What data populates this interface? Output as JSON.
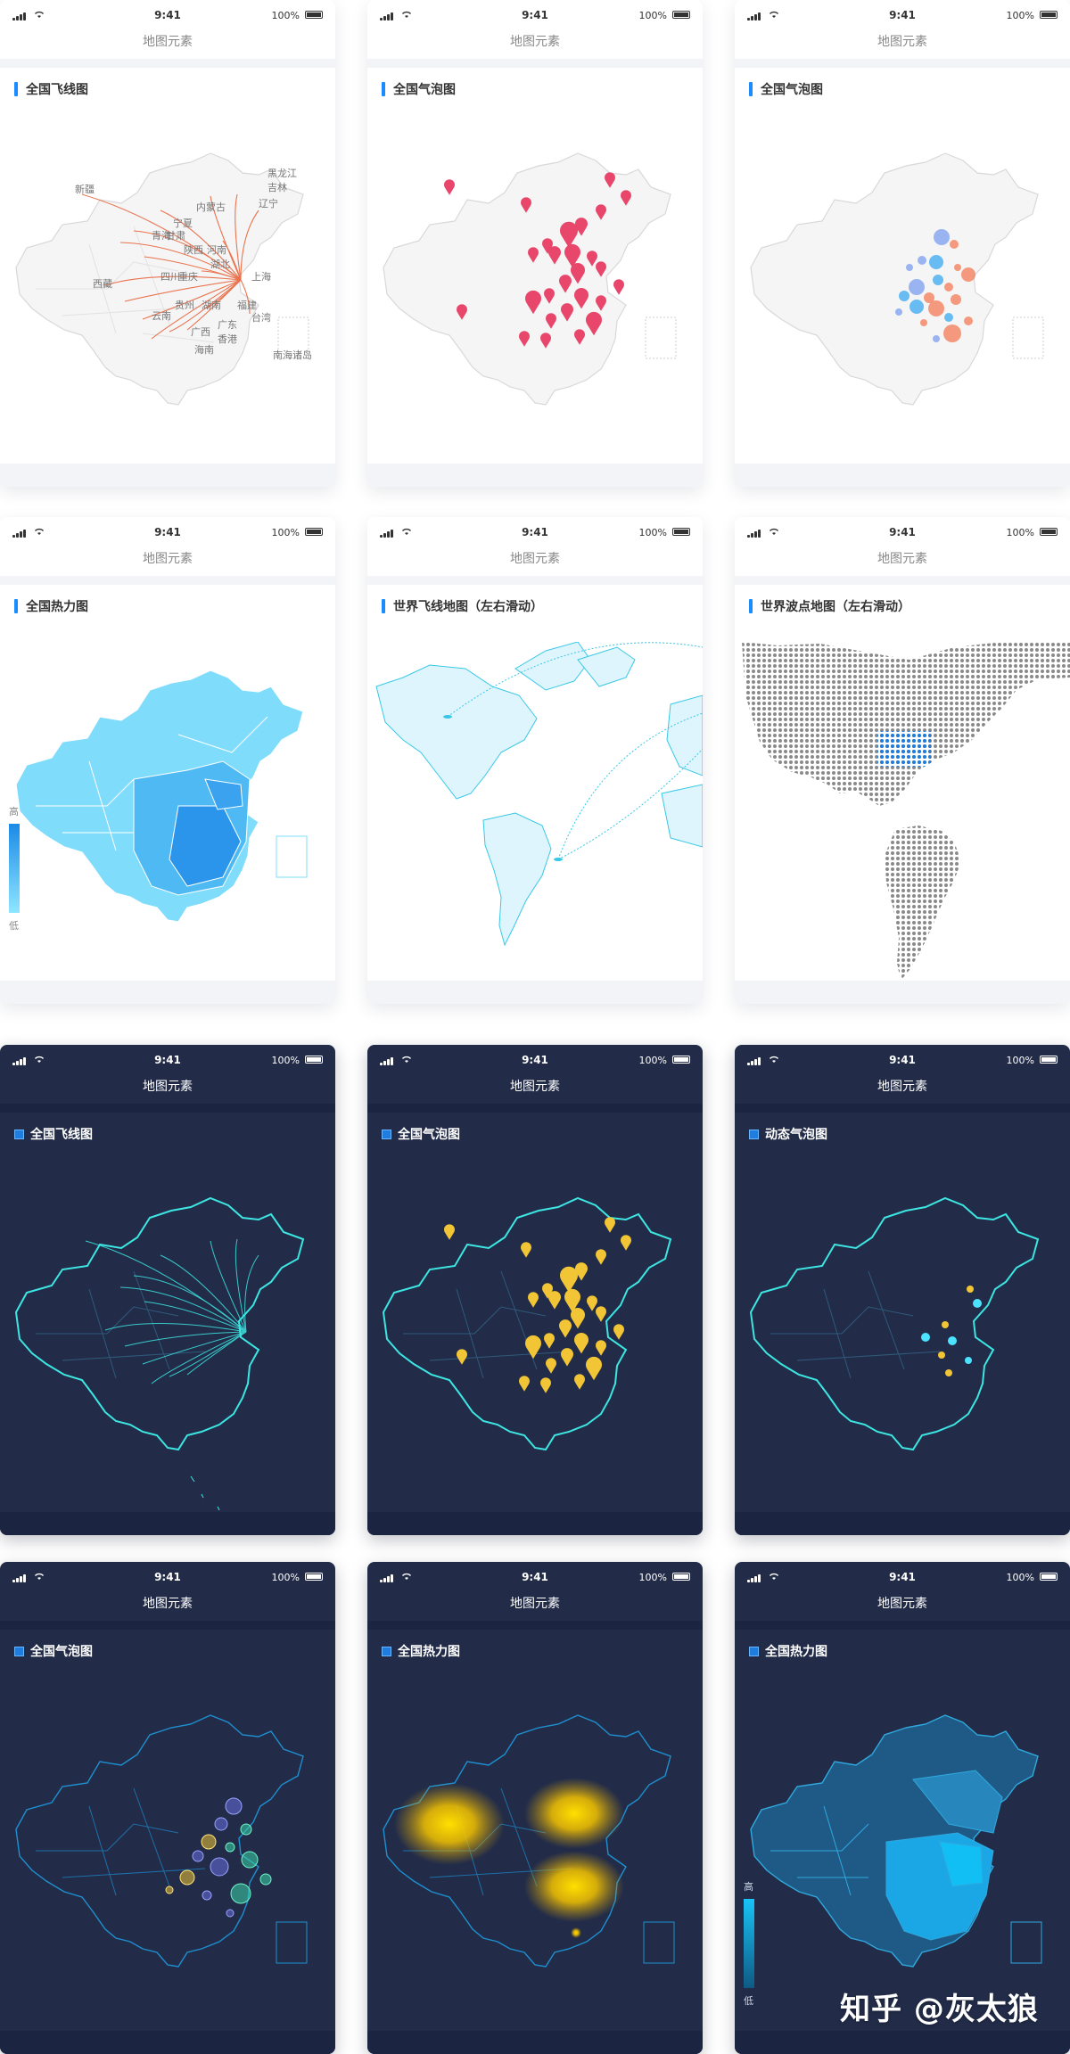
{
  "status_bar": {
    "time": "9:41",
    "battery": "100%"
  },
  "nav_title": "地图元素",
  "cards": [
    {
      "title": "全国飞线图",
      "theme": "light",
      "map": "flight-lines",
      "labels": [
        "黑龙江",
        "吉林",
        "辽宁",
        "新疆",
        "内蒙古",
        "宁夏",
        "青海",
        "甘肃",
        "陕西",
        "西藏",
        "四川",
        "重庆",
        "湖北",
        "上海",
        "云南",
        "贵州",
        "湖南",
        "台湾",
        "广西",
        "广东",
        "香港",
        "海南",
        "南海诸岛",
        "河南",
        "福建"
      ]
    },
    {
      "title": "全国气泡图",
      "theme": "light",
      "map": "pins",
      "pin_color": "#e8466a"
    },
    {
      "title": "全国气泡图",
      "theme": "light",
      "map": "bubbles",
      "bubble_colors": [
        "#3aa8f0",
        "#f47a55",
        "#7b9ef0"
      ]
    },
    {
      "title": "全国热力图",
      "theme": "light",
      "map": "choropleth",
      "legend": {
        "high": "高",
        "low": "低"
      },
      "scale_colors": [
        "#1a8ae6",
        "#8ee6ff"
      ]
    },
    {
      "title": "世界飞线地图（左右滑动）",
      "theme": "light",
      "map": "world-lines"
    },
    {
      "title": "世界波点地图（左右滑动）",
      "theme": "light",
      "map": "world-dots"
    },
    {
      "title": "全国飞线图",
      "theme": "dark",
      "map": "flight-lines-dark"
    },
    {
      "title": "全国气泡图",
      "theme": "dark",
      "map": "pins-dark",
      "pin_color": "#f1c535"
    },
    {
      "title": "动态气泡图",
      "theme": "dark",
      "map": "dynamic-bubbles"
    },
    {
      "title": "全国气泡图",
      "theme": "dark",
      "map": "bubbles-dark"
    },
    {
      "title": "全国热力图",
      "theme": "dark",
      "map": "heat-glow"
    },
    {
      "title": "全国热力图",
      "theme": "dark",
      "map": "choropleth-dark",
      "legend": {
        "high": "高",
        "low": "低"
      }
    }
  ],
  "watermark": "知乎 @灰太狼"
}
